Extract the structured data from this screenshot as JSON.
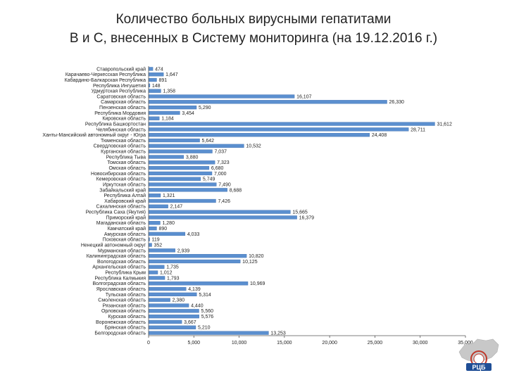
{
  "title": {
    "line1": "Количество больных вирусными гепатитами",
    "line2": "В и С, внесенных в Систему мониторинга (на 19.12.2016 г.)"
  },
  "logo": {
    "text": "РЦБ",
    "icon": "russia-map-logo-icon"
  },
  "colors": {
    "bar": "#5b8fcf",
    "bar_edge": "#3f6fae",
    "axis": "#555555",
    "text": "#222222"
  },
  "chart_data": {
    "type": "bar",
    "orientation": "horizontal",
    "title": "Количество больных вирусными гепатитами В и С, внесенных в Систему мониторинга (на 19.12.2016 г.)",
    "xlabel": "",
    "ylabel": "",
    "xlim": [
      0,
      35000
    ],
    "xticks": [
      "0",
      "5,000",
      "10,000",
      "15,000",
      "20,000",
      "25,000",
      "30,000",
      "35,000"
    ],
    "grid": false,
    "categories": [
      "Ставропольский край",
      "Карачаево-Черкесская Республика",
      "Кабардино-Балкарская Республика",
      "Республика Ингушетия",
      "Удмуртская Республика",
      "Саратовская область",
      "Самарская область",
      "Пензенская область",
      "Республика Мордовия",
      "Кировская область",
      "Республика Башкортостан",
      "Челябинская область",
      "Ханты-Мансийский автономный округ - Югра",
      "Тюменская область",
      "Свердловская область",
      "Курганская область",
      "Республика Тыва",
      "Томская область",
      "Омская область",
      "Новосибирская область",
      "Кемеровская область",
      "Иркутская область",
      "Забайкальский край",
      "Республика Алтай",
      "Хабаровский край",
      "Сахалинская область",
      "Республика Саха (Якутия)",
      "Приморский край",
      "Магаданская область",
      "Камчатский край",
      "Амурская область",
      "Псковская область",
      "Ненецкий автономный округ",
      "Мурманская область",
      "Калининградская область",
      "Вологодская область",
      "Архангельская область",
      "Республика Крым",
      "Республика Калмыкия",
      "Волгоградская область",
      "Ярославская область",
      "Тульская область",
      "Смоленская область",
      "Рязанская область",
      "Орловская область",
      "Курская область",
      "Воронежская область",
      "Брянская область",
      "Белгородская область"
    ],
    "values": [
      474,
      1647,
      891,
      148,
      1358,
      16107,
      26330,
      5290,
      3454,
      1184,
      31612,
      28711,
      24408,
      5642,
      10532,
      7037,
      3880,
      7323,
      6680,
      7000,
      5749,
      7490,
      8688,
      1321,
      7426,
      2147,
      15665,
      16379,
      1280,
      890,
      4033,
      119,
      352,
      2939,
      10820,
      10125,
      1735,
      1012,
      1793,
      10969,
      4139,
      5314,
      2380,
      4440,
      5560,
      5576,
      3667,
      5210,
      13253
    ],
    "value_labels": [
      "474",
      "1,647",
      "891",
      "148",
      "1,358",
      "16,107",
      "26,330",
      "5,290",
      "3,454",
      "1,184",
      "31,612",
      "28,711",
      "24,408",
      "5,642",
      "10,532",
      "7,037",
      "3,880",
      "7,323",
      "6,680",
      "7,000",
      "5,749",
      "7,490",
      "8,688",
      "1,321",
      "7,426",
      "2,147",
      "15,665",
      "16,379",
      "1,280",
      "890",
      "4,033",
      "119",
      "352",
      "2,939",
      "10,820",
      "10,125",
      "1,735",
      "1,012",
      "1,793",
      "10,969",
      "4,139",
      "5,314",
      "2,380",
      "4,440",
      "5,560",
      "5,576",
      "3,667",
      "5,210",
      "13,253"
    ]
  }
}
